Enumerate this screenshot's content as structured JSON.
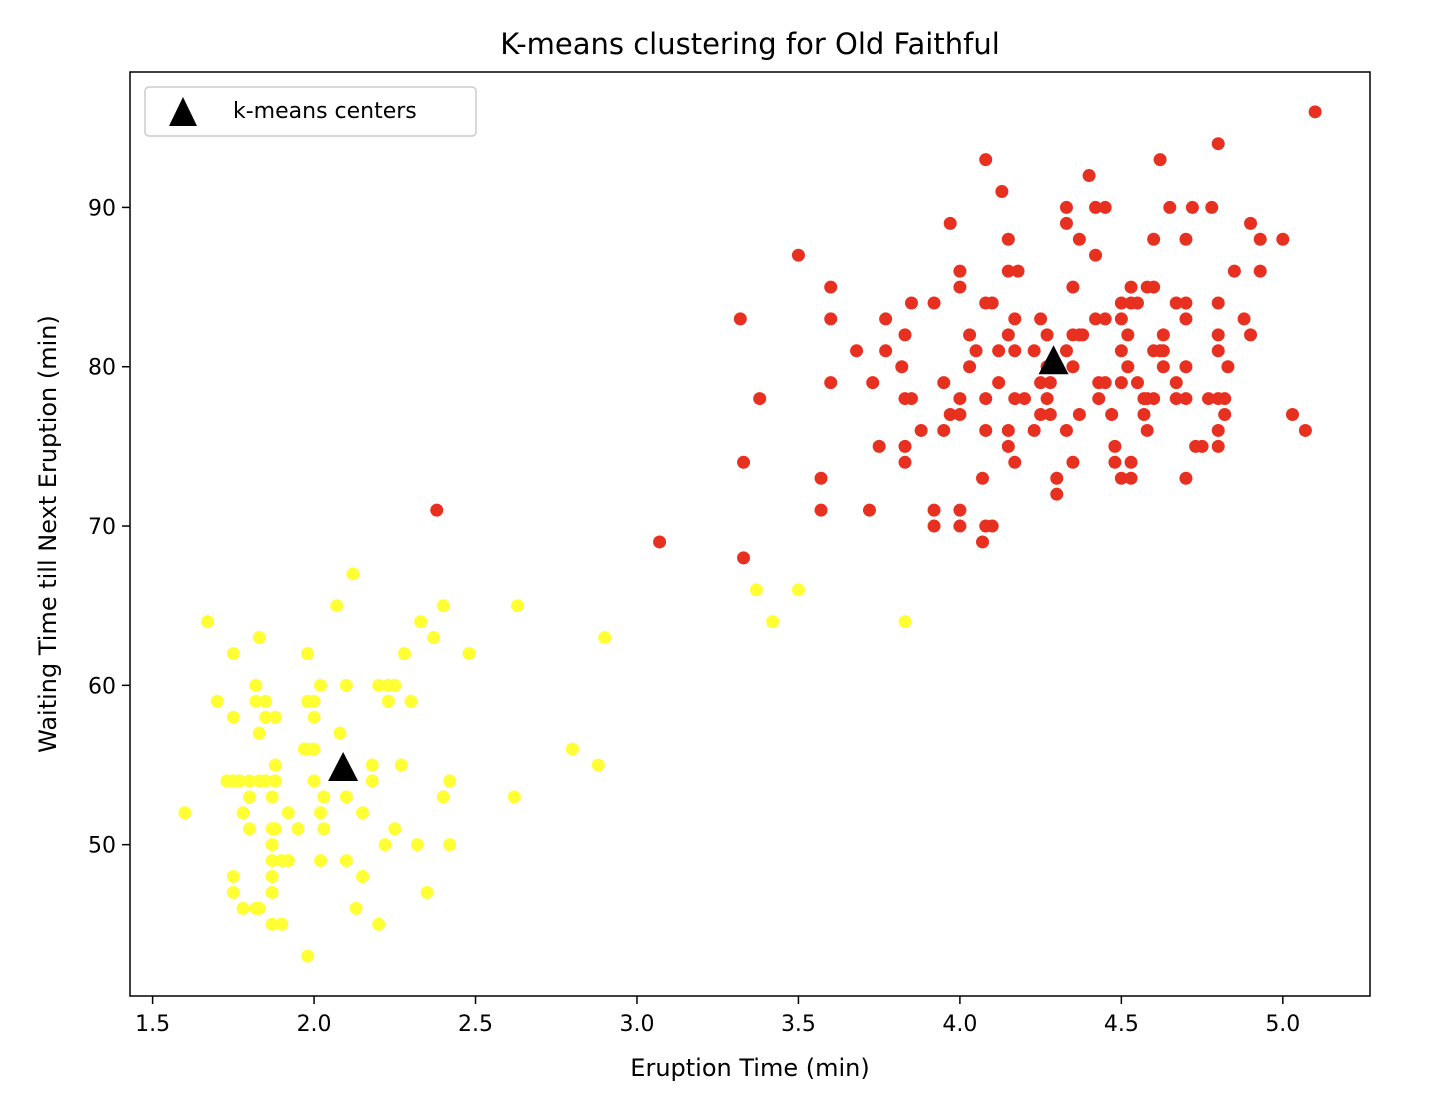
{
  "chart_data": {
    "type": "scatter",
    "title": "K-means clustering for Old Faithful",
    "xlabel": "Eruption Time (min)",
    "ylabel": "Waiting Time till Next Eruption (min)",
    "xlim": [
      1.43,
      5.27
    ],
    "ylim": [
      40.5,
      98.5
    ],
    "xticks": [
      1.5,
      2.0,
      2.5,
      3.0,
      3.5,
      4.0,
      4.5,
      5.0
    ],
    "xtick_labels": [
      "1.5",
      "2.0",
      "2.5",
      "3.0",
      "3.5",
      "4.0",
      "4.5",
      "5.0"
    ],
    "yticks": [
      50,
      60,
      70,
      80,
      90
    ],
    "ytick_labels": [
      "50",
      "60",
      "70",
      "80",
      "90"
    ],
    "grid": false,
    "legend": {
      "position": "top-left",
      "entries": [
        {
          "label": "k-means centers",
          "marker": "triangle",
          "color": "#000000"
        }
      ]
    },
    "colors": {
      "cluster_short": "#ffff33",
      "cluster_long": "#e83020",
      "centers": "#000000"
    },
    "series": [
      {
        "color": "#ffff33",
        "points": [
          [
            1.6,
            52
          ],
          [
            1.67,
            64
          ],
          [
            1.7,
            59
          ],
          [
            1.73,
            54
          ],
          [
            1.75,
            54
          ],
          [
            1.75,
            62
          ],
          [
            1.75,
            58
          ],
          [
            1.75,
            48
          ],
          [
            1.75,
            47
          ],
          [
            1.77,
            54
          ],
          [
            1.78,
            52
          ],
          [
            1.78,
            46
          ],
          [
            1.8,
            53
          ],
          [
            1.8,
            51
          ],
          [
            1.8,
            54
          ],
          [
            1.82,
            60
          ],
          [
            1.82,
            59
          ],
          [
            1.82,
            46
          ],
          [
            1.83,
            63
          ],
          [
            1.83,
            57
          ],
          [
            1.83,
            54
          ],
          [
            1.83,
            46
          ],
          [
            1.85,
            59
          ],
          [
            1.85,
            58
          ],
          [
            1.85,
            54
          ],
          [
            1.87,
            53
          ],
          [
            1.87,
            51
          ],
          [
            1.87,
            50
          ],
          [
            1.87,
            49
          ],
          [
            1.87,
            48
          ],
          [
            1.87,
            47
          ],
          [
            1.87,
            45
          ],
          [
            1.88,
            58
          ],
          [
            1.88,
            54
          ],
          [
            1.88,
            51
          ],
          [
            1.88,
            55
          ],
          [
            1.9,
            49
          ],
          [
            1.9,
            45
          ],
          [
            1.92,
            52
          ],
          [
            1.92,
            49
          ],
          [
            1.95,
            51
          ],
          [
            1.97,
            56
          ],
          [
            1.98,
            56
          ],
          [
            1.98,
            62
          ],
          [
            1.98,
            59
          ],
          [
            1.98,
            43
          ],
          [
            2.0,
            59
          ],
          [
            2.0,
            58
          ],
          [
            2.0,
            56
          ],
          [
            2.0,
            54
          ],
          [
            2.02,
            60
          ],
          [
            2.02,
            52
          ],
          [
            2.02,
            49
          ],
          [
            2.03,
            51
          ],
          [
            2.03,
            53
          ],
          [
            2.07,
            65
          ],
          [
            2.08,
            57
          ],
          [
            2.1,
            60
          ],
          [
            2.1,
            53
          ],
          [
            2.1,
            49
          ],
          [
            2.12,
            67
          ],
          [
            2.13,
            46
          ],
          [
            2.15,
            52
          ],
          [
            2.15,
            48
          ],
          [
            2.18,
            55
          ],
          [
            2.18,
            54
          ],
          [
            2.2,
            60
          ],
          [
            2.2,
            45
          ],
          [
            2.22,
            50
          ],
          [
            2.23,
            60
          ],
          [
            2.23,
            59
          ],
          [
            2.25,
            60
          ],
          [
            2.25,
            51
          ],
          [
            2.27,
            55
          ],
          [
            2.28,
            62
          ],
          [
            2.3,
            59
          ],
          [
            2.32,
            50
          ],
          [
            2.33,
            64
          ],
          [
            2.35,
            47
          ],
          [
            2.37,
            63
          ],
          [
            2.4,
            65
          ],
          [
            2.4,
            53
          ],
          [
            2.42,
            54
          ],
          [
            2.42,
            50
          ],
          [
            2.48,
            62
          ],
          [
            2.62,
            53
          ],
          [
            2.63,
            65
          ],
          [
            2.8,
            56
          ],
          [
            2.88,
            55
          ],
          [
            2.9,
            63
          ],
          [
            3.37,
            66
          ],
          [
            3.42,
            64
          ],
          [
            3.5,
            66
          ],
          [
            3.83,
            64
          ]
        ]
      },
      {
        "color": "#e83020",
        "points": [
          [
            2.38,
            71
          ],
          [
            3.07,
            69
          ],
          [
            3.32,
            83
          ],
          [
            3.33,
            74
          ],
          [
            3.33,
            68
          ],
          [
            3.38,
            78
          ],
          [
            3.5,
            87
          ],
          [
            3.57,
            73
          ],
          [
            3.57,
            71
          ],
          [
            3.6,
            85
          ],
          [
            3.6,
            83
          ],
          [
            3.6,
            79
          ],
          [
            3.68,
            81
          ],
          [
            3.72,
            71
          ],
          [
            3.73,
            79
          ],
          [
            3.75,
            75
          ],
          [
            3.77,
            83
          ],
          [
            3.77,
            81
          ],
          [
            3.82,
            80
          ],
          [
            3.83,
            82
          ],
          [
            3.83,
            78
          ],
          [
            3.83,
            75
          ],
          [
            3.83,
            74
          ],
          [
            3.85,
            84
          ],
          [
            3.85,
            78
          ],
          [
            3.88,
            76
          ],
          [
            3.92,
            84
          ],
          [
            3.92,
            71
          ],
          [
            3.92,
            70
          ],
          [
            3.95,
            79
          ],
          [
            3.95,
            76
          ],
          [
            3.97,
            89
          ],
          [
            3.97,
            77
          ],
          [
            4.0,
            86
          ],
          [
            4.0,
            85
          ],
          [
            4.0,
            78
          ],
          [
            4.0,
            77
          ],
          [
            4.0,
            71
          ],
          [
            4.0,
            70
          ],
          [
            4.03,
            82
          ],
          [
            4.03,
            80
          ],
          [
            4.05,
            81
          ],
          [
            4.07,
            73
          ],
          [
            4.07,
            69
          ],
          [
            4.08,
            93
          ],
          [
            4.08,
            84
          ],
          [
            4.08,
            78
          ],
          [
            4.08,
            76
          ],
          [
            4.08,
            70
          ],
          [
            4.1,
            84
          ],
          [
            4.1,
            70
          ],
          [
            4.12,
            81
          ],
          [
            4.12,
            79
          ],
          [
            4.13,
            91
          ],
          [
            4.15,
            88
          ],
          [
            4.15,
            86
          ],
          [
            4.15,
            82
          ],
          [
            4.15,
            76
          ],
          [
            4.15,
            75
          ],
          [
            4.17,
            83
          ],
          [
            4.17,
            81
          ],
          [
            4.17,
            78
          ],
          [
            4.17,
            74
          ],
          [
            4.18,
            86
          ],
          [
            4.2,
            78
          ],
          [
            4.23,
            81
          ],
          [
            4.23,
            76
          ],
          [
            4.25,
            83
          ],
          [
            4.25,
            79
          ],
          [
            4.25,
            77
          ],
          [
            4.27,
            82
          ],
          [
            4.27,
            80
          ],
          [
            4.27,
            78
          ],
          [
            4.28,
            79
          ],
          [
            4.28,
            77
          ],
          [
            4.3,
            73
          ],
          [
            4.3,
            72
          ],
          [
            4.33,
            90
          ],
          [
            4.33,
            89
          ],
          [
            4.33,
            81
          ],
          [
            4.33,
            76
          ],
          [
            4.35,
            85
          ],
          [
            4.35,
            82
          ],
          [
            4.35,
            80
          ],
          [
            4.35,
            74
          ],
          [
            4.37,
            88
          ],
          [
            4.37,
            82
          ],
          [
            4.37,
            77
          ],
          [
            4.38,
            82
          ],
          [
            4.4,
            92
          ],
          [
            4.42,
            90
          ],
          [
            4.42,
            87
          ],
          [
            4.42,
            83
          ],
          [
            4.43,
            79
          ],
          [
            4.43,
            78
          ],
          [
            4.45,
            90
          ],
          [
            4.45,
            83
          ],
          [
            4.45,
            79
          ],
          [
            4.47,
            77
          ],
          [
            4.48,
            75
          ],
          [
            4.48,
            74
          ],
          [
            4.5,
            84
          ],
          [
            4.5,
            83
          ],
          [
            4.5,
            81
          ],
          [
            4.5,
            79
          ],
          [
            4.5,
            73
          ],
          [
            4.52,
            82
          ],
          [
            4.52,
            80
          ],
          [
            4.53,
            85
          ],
          [
            4.53,
            84
          ],
          [
            4.53,
            74
          ],
          [
            4.53,
            73
          ],
          [
            4.55,
            84
          ],
          [
            4.55,
            79
          ],
          [
            4.57,
            78
          ],
          [
            4.57,
            77
          ],
          [
            4.58,
            85
          ],
          [
            4.58,
            78
          ],
          [
            4.58,
            76
          ],
          [
            4.6,
            88
          ],
          [
            4.6,
            85
          ],
          [
            4.6,
            81
          ],
          [
            4.6,
            78
          ],
          [
            4.62,
            93
          ],
          [
            4.62,
            81
          ],
          [
            4.63,
            82
          ],
          [
            4.63,
            81
          ],
          [
            4.63,
            80
          ],
          [
            4.65,
            90
          ],
          [
            4.67,
            84
          ],
          [
            4.67,
            78
          ],
          [
            4.67,
            79
          ],
          [
            4.7,
            88
          ],
          [
            4.7,
            84
          ],
          [
            4.7,
            83
          ],
          [
            4.7,
            80
          ],
          [
            4.7,
            78
          ],
          [
            4.7,
            73
          ],
          [
            4.72,
            90
          ],
          [
            4.73,
            75
          ],
          [
            4.75,
            75
          ],
          [
            4.77,
            78
          ],
          [
            4.78,
            90
          ],
          [
            4.8,
            94
          ],
          [
            4.8,
            84
          ],
          [
            4.8,
            82
          ],
          [
            4.8,
            81
          ],
          [
            4.8,
            78
          ],
          [
            4.8,
            76
          ],
          [
            4.8,
            75
          ],
          [
            4.82,
            78
          ],
          [
            4.82,
            77
          ],
          [
            4.83,
            80
          ],
          [
            4.85,
            86
          ],
          [
            4.88,
            83
          ],
          [
            4.9,
            89
          ],
          [
            4.9,
            82
          ],
          [
            4.93,
            88
          ],
          [
            4.93,
            86
          ],
          [
            5.0,
            88
          ],
          [
            5.03,
            77
          ],
          [
            5.07,
            76
          ],
          [
            5.1,
            96
          ]
        ]
      }
    ],
    "centers": [
      [
        2.09,
        54.75
      ],
      [
        4.29,
        80.28
      ]
    ]
  }
}
